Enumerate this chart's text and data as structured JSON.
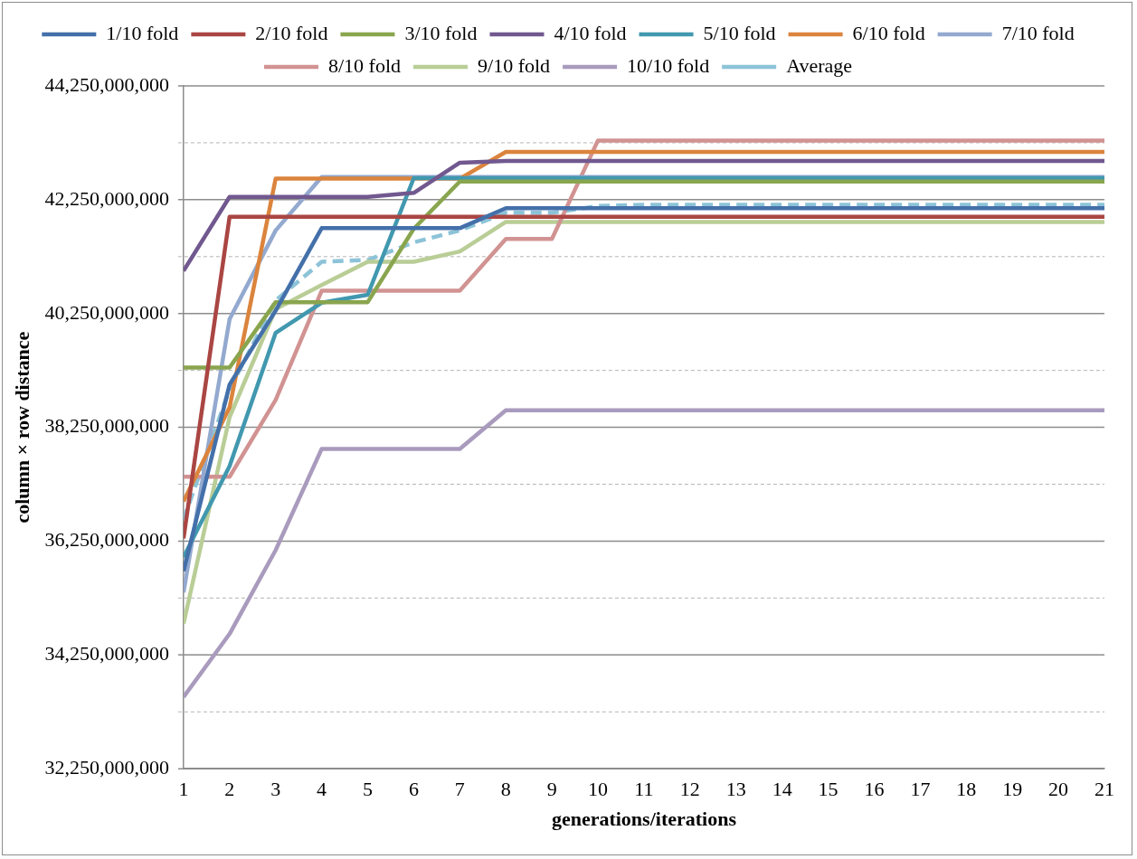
{
  "chart_data": {
    "type": "line",
    "xlabel": "generations/iterations",
    "ylabel": "column × row distance",
    "x": [
      1,
      2,
      3,
      4,
      5,
      6,
      7,
      8,
      9,
      10,
      11,
      12,
      13,
      14,
      15,
      16,
      17,
      18,
      19,
      20,
      21
    ],
    "xlim": [
      1,
      21
    ],
    "xticks": [
      1,
      2,
      3,
      4,
      5,
      6,
      7,
      8,
      9,
      10,
      11,
      12,
      13,
      14,
      15,
      16,
      17,
      18,
      19,
      20,
      21
    ],
    "ylim": [
      32250000000,
      44250000000
    ],
    "yticks": [
      {
        "value": 32250000000,
        "label": "32,250,000,000"
      },
      {
        "value": 33250000000,
        "label": null
      },
      {
        "value": 34250000000,
        "label": "34,250,000,000"
      },
      {
        "value": 35250000000,
        "label": null
      },
      {
        "value": 36250000000,
        "label": "36,250,000,000"
      },
      {
        "value": 37250000000,
        "label": null
      },
      {
        "value": 38250000000,
        "label": "38,250,000,000"
      },
      {
        "value": 39250000000,
        "label": null
      },
      {
        "value": 40250000000,
        "label": "40,250,000,000"
      },
      {
        "value": 41250000000,
        "label": null
      },
      {
        "value": 42250000000,
        "label": "42,250,000,000"
      },
      {
        "value": 43250000000,
        "label": null
      },
      {
        "value": 44250000000,
        "label": "44,250,000,000"
      }
    ],
    "grid": "y",
    "legend": "top",
    "marker": "none",
    "series": [
      {
        "name": "1/10 fold",
        "color": "#4470aa",
        "values": [
          35720000000,
          39000000000,
          40300000000,
          41750000000,
          41750000000,
          41750000000,
          41750000000,
          42100000000,
          42100000000,
          42100000000,
          42100000000,
          42100000000,
          42100000000,
          42100000000,
          42100000000,
          42100000000,
          42100000000,
          42100000000,
          42100000000,
          42100000000,
          42100000000
        ]
      },
      {
        "name": "2/10 fold",
        "color": "#aa4643",
        "values": [
          36300000000,
          41950000000,
          41950000000,
          41950000000,
          41950000000,
          41950000000,
          41950000000,
          41950000000,
          41950000000,
          41950000000,
          41950000000,
          41950000000,
          41950000000,
          41950000000,
          41950000000,
          41950000000,
          41950000000,
          41950000000,
          41950000000,
          41950000000,
          41950000000
        ]
      },
      {
        "name": "3/10 fold",
        "color": "#89a54e",
        "values": [
          39300000000,
          39300000000,
          40450000000,
          40450000000,
          40450000000,
          41740000000,
          42570000000,
          42570000000,
          42570000000,
          42570000000,
          42570000000,
          42570000000,
          42570000000,
          42570000000,
          42570000000,
          42570000000,
          42570000000,
          42570000000,
          42570000000,
          42570000000,
          42570000000
        ]
      },
      {
        "name": "4/10 fold",
        "color": "#71588f",
        "values": [
          41000000000,
          42300000000,
          42300000000,
          42300000000,
          42300000000,
          42370000000,
          42900000000,
          42930000000,
          42930000000,
          42930000000,
          42930000000,
          42930000000,
          42930000000,
          42930000000,
          42930000000,
          42930000000,
          42930000000,
          42930000000,
          42930000000,
          42930000000,
          42930000000
        ]
      },
      {
        "name": "5/10 fold",
        "color": "#4198af",
        "values": [
          35970000000,
          37570000000,
          39910000000,
          40440000000,
          40580000000,
          42630000000,
          42630000000,
          42630000000,
          42630000000,
          42630000000,
          42630000000,
          42630000000,
          42630000000,
          42630000000,
          42630000000,
          42630000000,
          42630000000,
          42630000000,
          42630000000,
          42630000000,
          42630000000
        ]
      },
      {
        "name": "6/10 fold",
        "color": "#db843d",
        "values": [
          36950000000,
          38600000000,
          42620000000,
          42620000000,
          42620000000,
          42620000000,
          42620000000,
          43090000000,
          43090000000,
          43090000000,
          43090000000,
          43090000000,
          43090000000,
          43090000000,
          43090000000,
          43090000000,
          43090000000,
          43090000000,
          43090000000,
          43090000000,
          43090000000
        ]
      },
      {
        "name": "7/10 fold",
        "color": "#93a9cf",
        "values": [
          35350000000,
          40150000000,
          41710000000,
          42650000000,
          42650000000,
          42650000000,
          42650000000,
          42650000000,
          42650000000,
          42650000000,
          42650000000,
          42650000000,
          42650000000,
          42650000000,
          42650000000,
          42650000000,
          42650000000,
          42650000000,
          42650000000,
          42650000000,
          42650000000
        ]
      },
      {
        "name": "8/10 fold",
        "color": "#d19392",
        "values": [
          37380000000,
          37380000000,
          38730000000,
          40650000000,
          40650000000,
          40650000000,
          40650000000,
          41560000000,
          41560000000,
          43290000000,
          43290000000,
          43290000000,
          43290000000,
          43290000000,
          43290000000,
          43290000000,
          43290000000,
          43290000000,
          43290000000,
          43290000000,
          43290000000
        ]
      },
      {
        "name": "9/10 fold",
        "color": "#b9cd96",
        "values": [
          34800000000,
          38430000000,
          40330000000,
          40750000000,
          41160000000,
          41160000000,
          41340000000,
          41860000000,
          41860000000,
          41860000000,
          41860000000,
          41860000000,
          41860000000,
          41860000000,
          41860000000,
          41860000000,
          41860000000,
          41860000000,
          41860000000,
          41860000000,
          41860000000
        ]
      },
      {
        "name": "10/10 fold",
        "color": "#a99bbd",
        "values": [
          33510000000,
          34620000000,
          36090000000,
          37870000000,
          37870000000,
          37870000000,
          37870000000,
          38550000000,
          38550000000,
          38550000000,
          38550000000,
          38550000000,
          38550000000,
          38550000000,
          38550000000,
          38550000000,
          38550000000,
          38550000000,
          38550000000,
          38550000000,
          38550000000
        ]
      },
      {
        "name": "Average",
        "color": "#8cc3d8",
        "line_style": "dashed",
        "values": [
          36630000000,
          38920000000,
          40480000000,
          41160000000,
          41190000000,
          41500000000,
          41710000000,
          42020000000,
          42020000000,
          42140000000,
          42160000000,
          42160000000,
          42160000000,
          42160000000,
          42160000000,
          42160000000,
          42160000000,
          42160000000,
          42160000000,
          42160000000,
          42160000000
        ]
      }
    ]
  }
}
